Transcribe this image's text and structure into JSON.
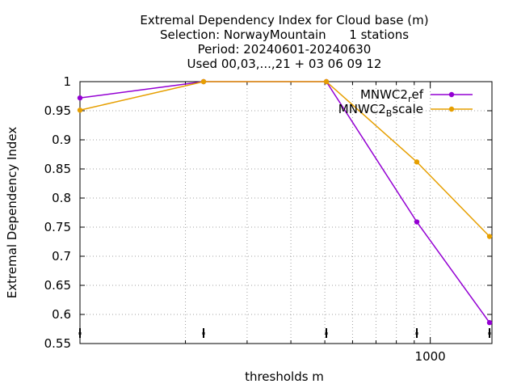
{
  "chart_data": {
    "type": "line",
    "title_lines": [
      "Extremal Dependency Index  for Cloud base (m)",
      "Selection: NorwayMountain      1 stations",
      "Period: 20240601-20240630",
      "Used 00,03,...,21 + 03 06 09 12"
    ],
    "xlabel": "thresholds m",
    "ylabel": "Extremal Dependency Index",
    "x_scale": "log",
    "xlim": [
      100,
      1500
    ],
    "ylim": [
      0.55,
      1.0
    ],
    "x_tick_labels": [
      {
        "value": 1000,
        "label": "1000"
      }
    ],
    "y_ticks": [
      0.55,
      0.6,
      0.65,
      0.7,
      0.75,
      0.8,
      0.85,
      0.9,
      0.95,
      1.0
    ],
    "y_tick_labels": [
      "0.55",
      "0.6",
      "0.65",
      "0.7",
      "0.75",
      "0.8",
      "0.85",
      "0.9",
      "0.95",
      "1"
    ],
    "grid": true,
    "legend_position": "top-right",
    "x": [
      100,
      200,
      500,
      1000,
      1500
    ],
    "series": [
      {
        "legend": {
          "base": "MNWC2",
          "sub": "r",
          "rest": "ef"
        },
        "color": "#9400d3",
        "values": [
          0.972,
          1.0,
          1.0,
          0.759,
          0.586
        ]
      },
      {
        "legend": {
          "base": "MNWC2",
          "sub": "B",
          "rest": "scale"
        },
        "color": "#e69f00",
        "values": [
          0.951,
          1.0,
          1.0,
          0.862,
          0.734
        ]
      }
    ]
  }
}
